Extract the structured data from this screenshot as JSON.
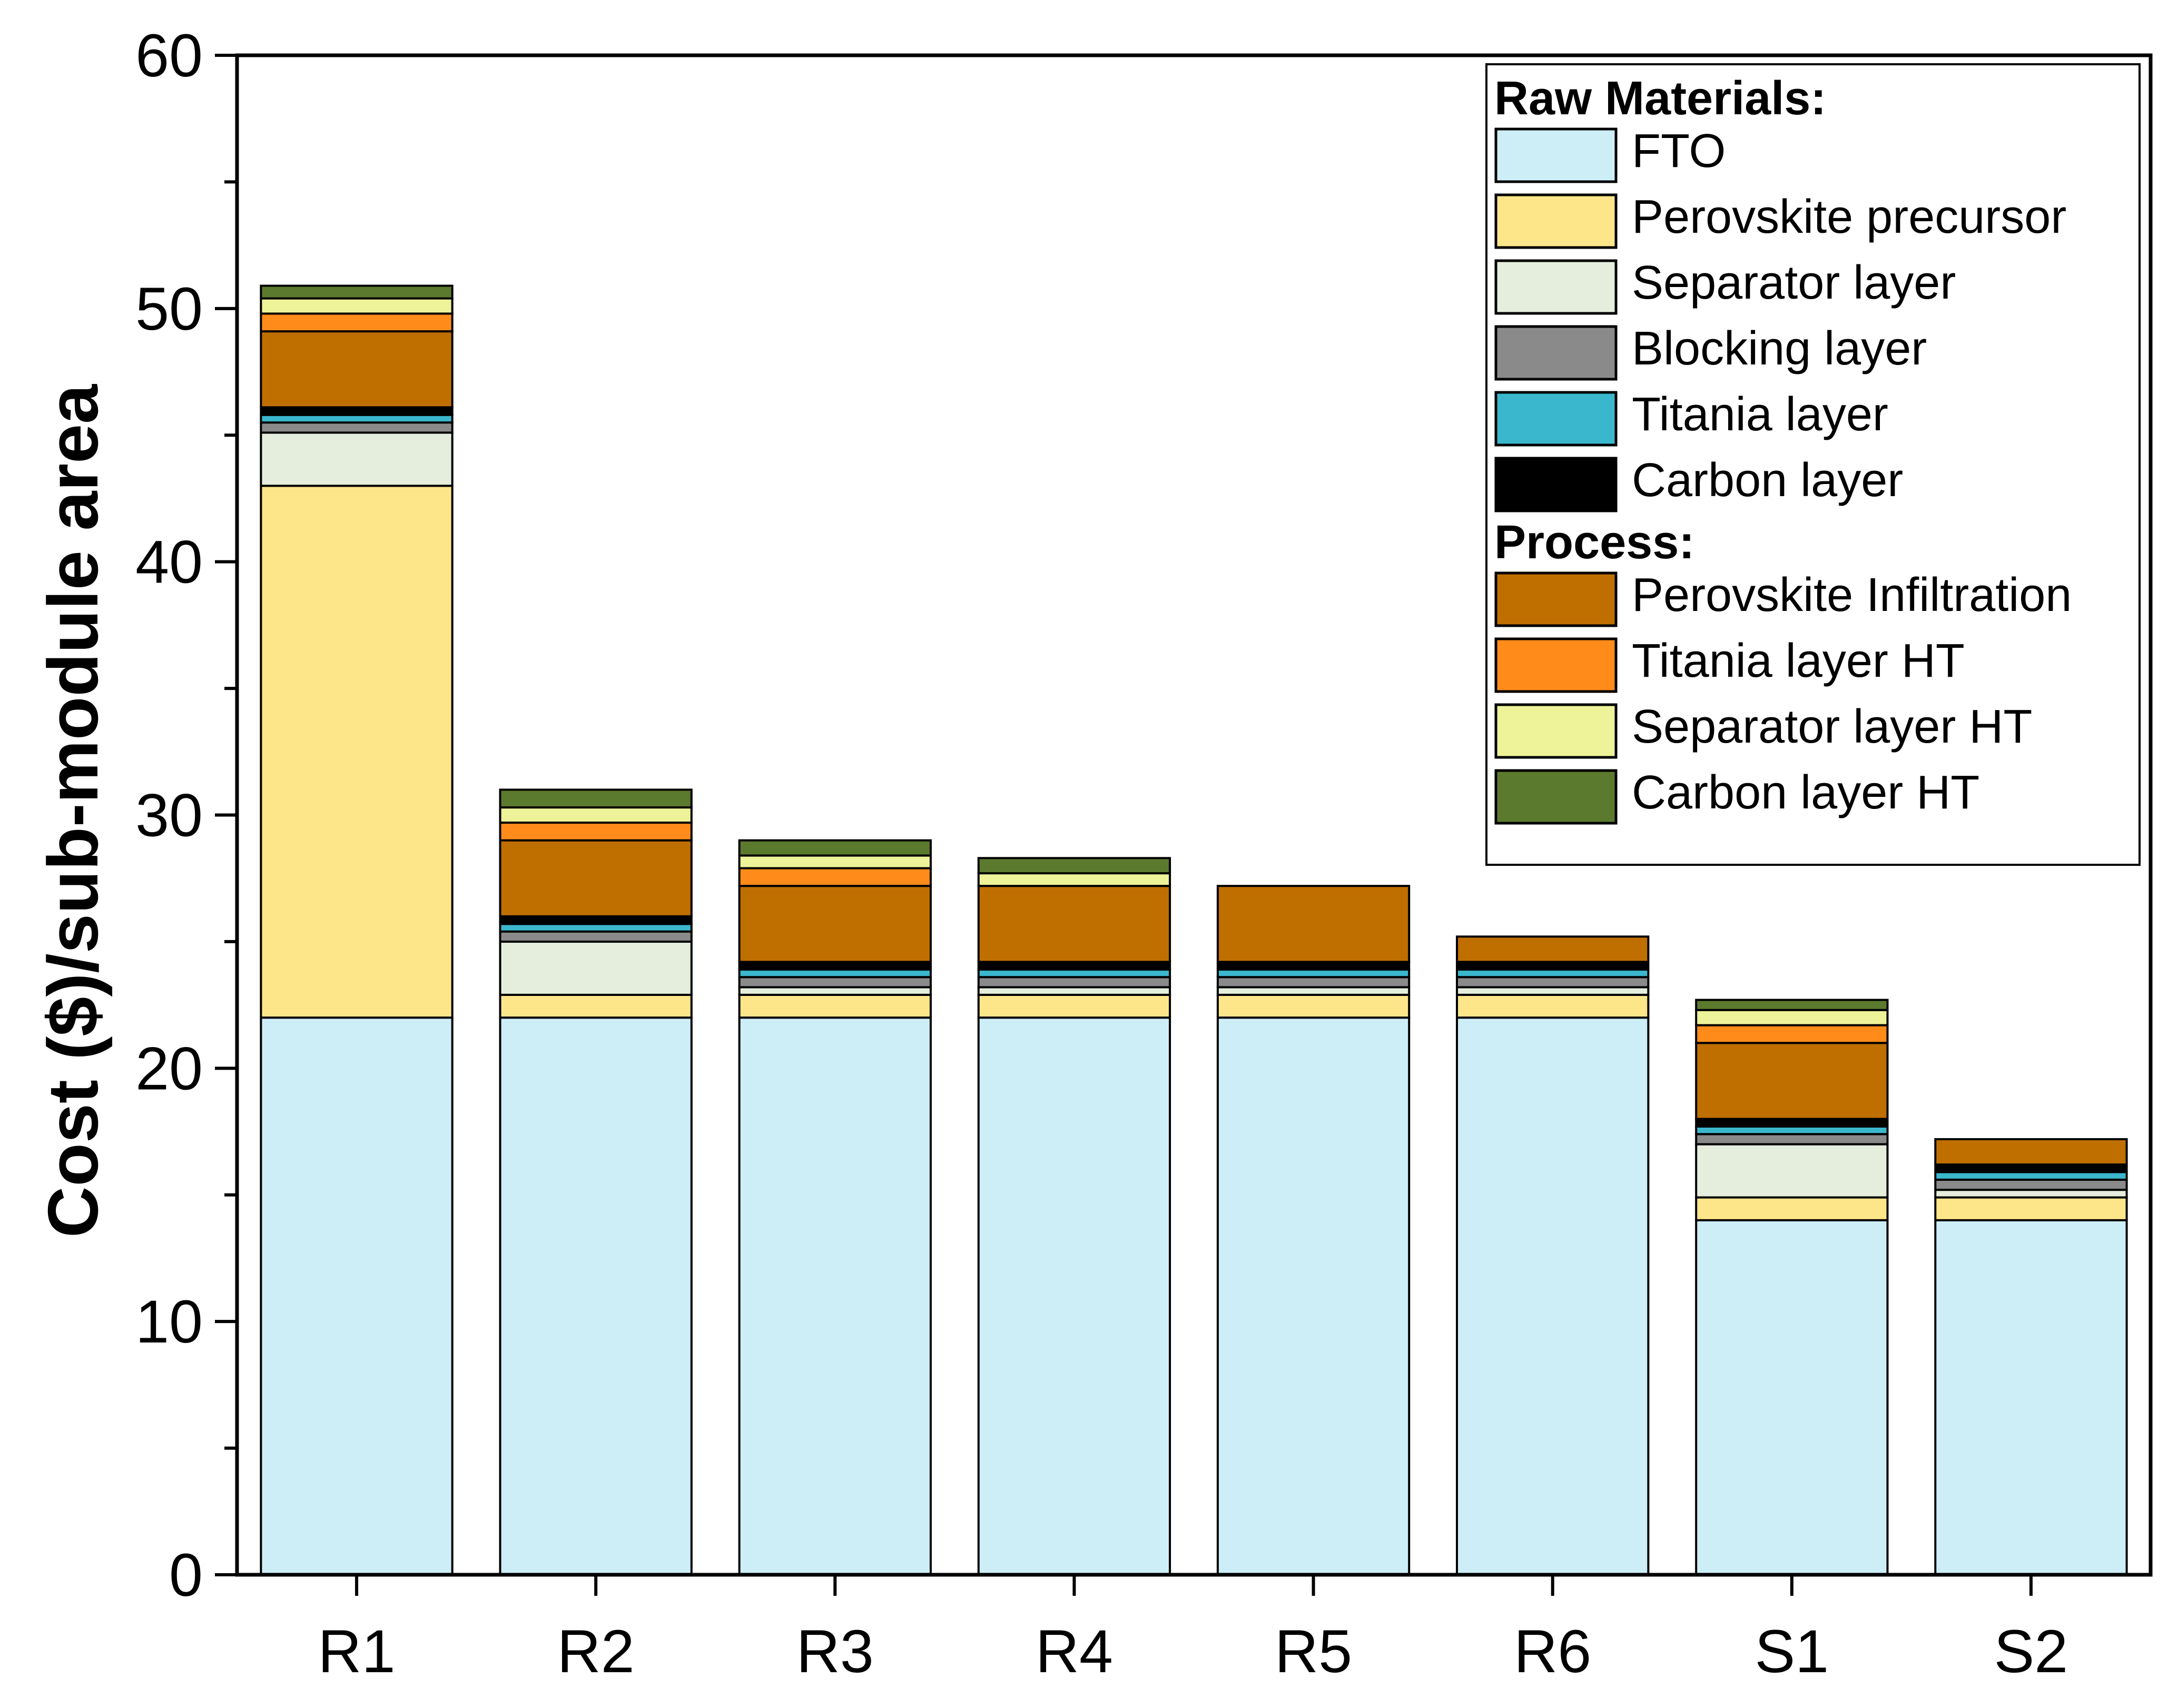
{
  "chart_data": {
    "type": "bar",
    "stacked": true,
    "title": "",
    "xlabel": "",
    "ylabel": "Cost ($)/sub-module area",
    "ylim": [
      0,
      60
    ],
    "yticks": [
      0,
      10,
      20,
      30,
      40,
      50,
      60
    ],
    "grid": false,
    "legend_position": "top-right",
    "categories": [
      "R1",
      "R2",
      "R3",
      "R4",
      "R5",
      "R6",
      "S1",
      "S2"
    ],
    "legend_groups": [
      {
        "heading": "Raw Materials:",
        "series": [
          "FTO",
          "Perovskite precursor",
          "Separator layer",
          "Blocking layer",
          "Titania layer",
          "Carbon layer"
        ]
      },
      {
        "heading": "Process:",
        "series": [
          "Perovskite Infiltration",
          "Titania layer HT",
          "Separator layer HT",
          "Carbon layer HT"
        ]
      }
    ],
    "series": [
      {
        "name": "FTO",
        "color": "#cdeef7",
        "values": [
          22.0,
          22.0,
          22.0,
          22.0,
          22.0,
          22.0,
          14.0,
          14.0
        ]
      },
      {
        "name": "Perovskite precursor",
        "color": "#fde68a",
        "values": [
          21.0,
          0.9,
          0.9,
          0.9,
          0.9,
          0.9,
          0.9,
          0.9
        ]
      },
      {
        "name": "Separator layer",
        "color": "#e5eedc",
        "values": [
          2.1,
          2.1,
          0.3,
          0.3,
          0.3,
          0.3,
          2.1,
          0.3
        ]
      },
      {
        "name": "Blocking layer",
        "color": "#8a8a8a",
        "values": [
          0.4,
          0.4,
          0.4,
          0.4,
          0.4,
          0.4,
          0.4,
          0.4
        ]
      },
      {
        "name": "Titania layer",
        "color": "#3bb7cd",
        "values": [
          0.3,
          0.3,
          0.3,
          0.3,
          0.3,
          0.3,
          0.3,
          0.3
        ]
      },
      {
        "name": "Carbon layer",
        "color": "#000000",
        "values": [
          0.3,
          0.3,
          0.3,
          0.3,
          0.3,
          0.3,
          0.3,
          0.3
        ]
      },
      {
        "name": "Perovskite Infiltration",
        "color": "#bf6f00",
        "values": [
          3.0,
          3.0,
          3.0,
          3.0,
          3.0,
          1.0,
          3.0,
          1.0
        ]
      },
      {
        "name": "Titania layer HT",
        "color": "#ff8c1a",
        "values": [
          0.7,
          0.7,
          0.7,
          0.0,
          0.0,
          0.0,
          0.7,
          0.0
        ]
      },
      {
        "name": "Separator layer HT",
        "color": "#eef39a",
        "values": [
          0.6,
          0.6,
          0.5,
          0.5,
          0.0,
          0.0,
          0.6,
          0.0
        ]
      },
      {
        "name": "Carbon layer HT",
        "color": "#5c7a2e",
        "values": [
          0.5,
          0.7,
          0.6,
          0.6,
          0.0,
          0.0,
          0.4,
          0.0
        ]
      }
    ]
  }
}
